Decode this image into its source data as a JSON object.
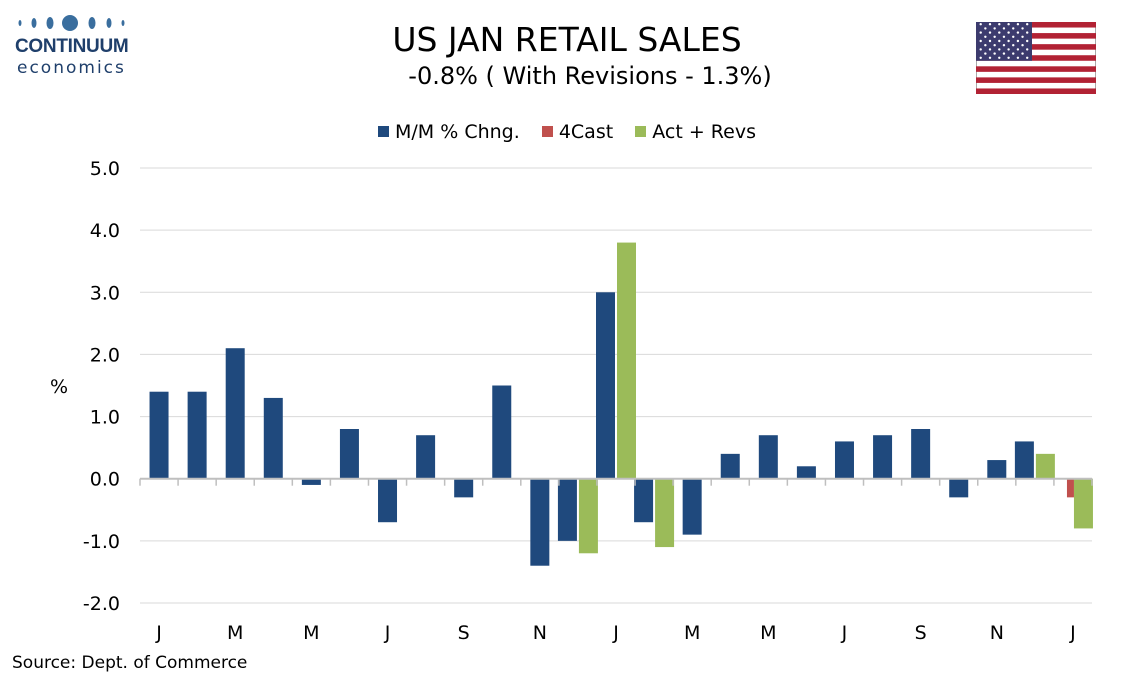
{
  "logo": {
    "name": "CONTINUUM",
    "sub": "economics"
  },
  "title": "US JAN RETAIL SALES",
  "subtitle": "-0.8% ( With Revisions - 1.3%)",
  "source": "Source: Dept. of Commerce",
  "colors": {
    "mm": "#1f497d",
    "forecast": "#c0504d",
    "actual": "#9bbb59",
    "grid": "#d9d9d9",
    "axis": "#bfbfbf"
  },
  "chart_data": {
    "type": "bar",
    "ylabel": "%",
    "ylim": [
      -2.0,
      5.0
    ],
    "yticks": [
      "5.0",
      "4.0",
      "3.0",
      "2.0",
      "1.0",
      "0.0",
      "-1.0",
      "-2.0"
    ],
    "xtick_labels": [
      "J",
      "M",
      "M",
      "J",
      "S",
      "N",
      "J",
      "M",
      "M",
      "J",
      "S",
      "N",
      "J"
    ],
    "grid": true,
    "legend_position": "top",
    "series": [
      {
        "name": "M/M % Chng.",
        "color": "#1f497d",
        "values": [
          1.4,
          1.4,
          2.1,
          1.3,
          -0.1,
          0.8,
          -0.7,
          0.7,
          -0.3,
          1.5,
          -1.4,
          -1.0,
          3.0,
          -0.7,
          -0.9,
          0.4,
          0.7,
          0.2,
          0.6,
          0.7,
          0.8,
          -0.3,
          0.3,
          0.6,
          null
        ]
      },
      {
        "name": "4Cast",
        "color": "#c0504d",
        "values": [
          null,
          null,
          null,
          null,
          null,
          null,
          null,
          null,
          null,
          null,
          null,
          null,
          null,
          null,
          null,
          null,
          null,
          null,
          null,
          null,
          null,
          null,
          null,
          null,
          -0.3
        ]
      },
      {
        "name": "Act + Revs",
        "color": "#9bbb59",
        "values": [
          null,
          null,
          null,
          null,
          null,
          null,
          null,
          null,
          null,
          null,
          null,
          -1.2,
          3.8,
          -1.1,
          null,
          null,
          null,
          null,
          null,
          null,
          null,
          null,
          null,
          0.4,
          -0.8
        ]
      }
    ]
  }
}
